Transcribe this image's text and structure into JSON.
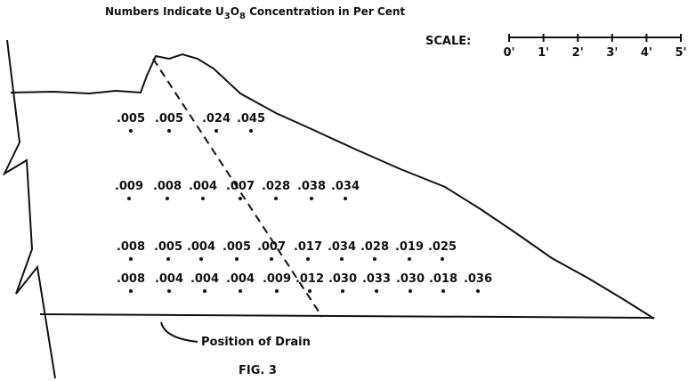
{
  "header": {
    "title_parts": [
      "Numbers Indicate U",
      "3",
      "O",
      "8",
      " Concentration in Per Cent"
    ]
  },
  "scale": {
    "label": "SCALE:",
    "ticks": [
      "0'",
      "1'",
      "2'",
      "3'",
      "4'",
      "5'"
    ]
  },
  "samples": {
    "rows": [
      [
        ".005",
        ".005",
        ".024",
        ".045"
      ],
      [
        ".009",
        ".008",
        ".004",
        ".007",
        ".028",
        ".038",
        ".034"
      ],
      [
        ".008",
        ".005",
        ".004",
        ".005",
        ".007",
        ".017",
        ".034",
        ".028",
        ".019",
        ".025"
      ],
      [
        ".008",
        ".004",
        ".004",
        ".004",
        ".009",
        ".012",
        ".030",
        ".033",
        ".030",
        ".018",
        ".036"
      ]
    ]
  },
  "drain_label": "Position of Drain",
  "caption": "FIG. 3"
}
